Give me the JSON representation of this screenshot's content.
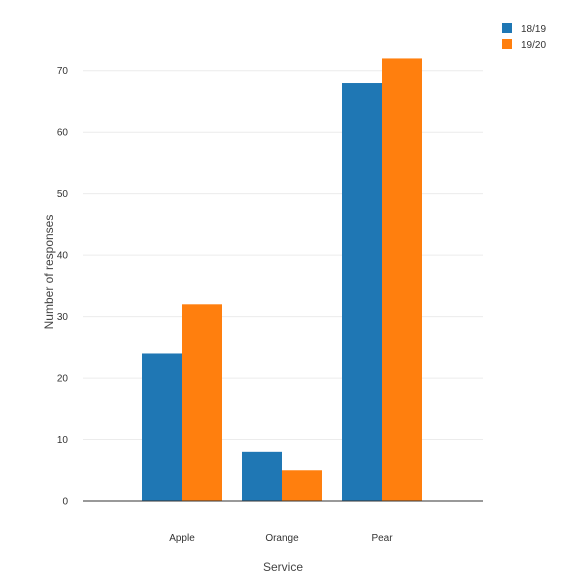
{
  "chart_data": {
    "type": "bar",
    "title": "",
    "xlabel": "Service",
    "ylabel": "Number of responses",
    "categories": [
      "Apple",
      "Orange",
      "Pear"
    ],
    "series": [
      {
        "name": "18/19",
        "values": [
          24,
          8,
          68
        ],
        "color": "#1f77b4"
      },
      {
        "name": "19/20",
        "values": [
          32,
          5,
          72
        ],
        "color": "#ff7f0e"
      }
    ],
    "ylim": [
      0,
      75
    ],
    "yticks": [
      0,
      10,
      20,
      30,
      40,
      50,
      60,
      70
    ],
    "grid": true,
    "legend_position": "top-right"
  }
}
